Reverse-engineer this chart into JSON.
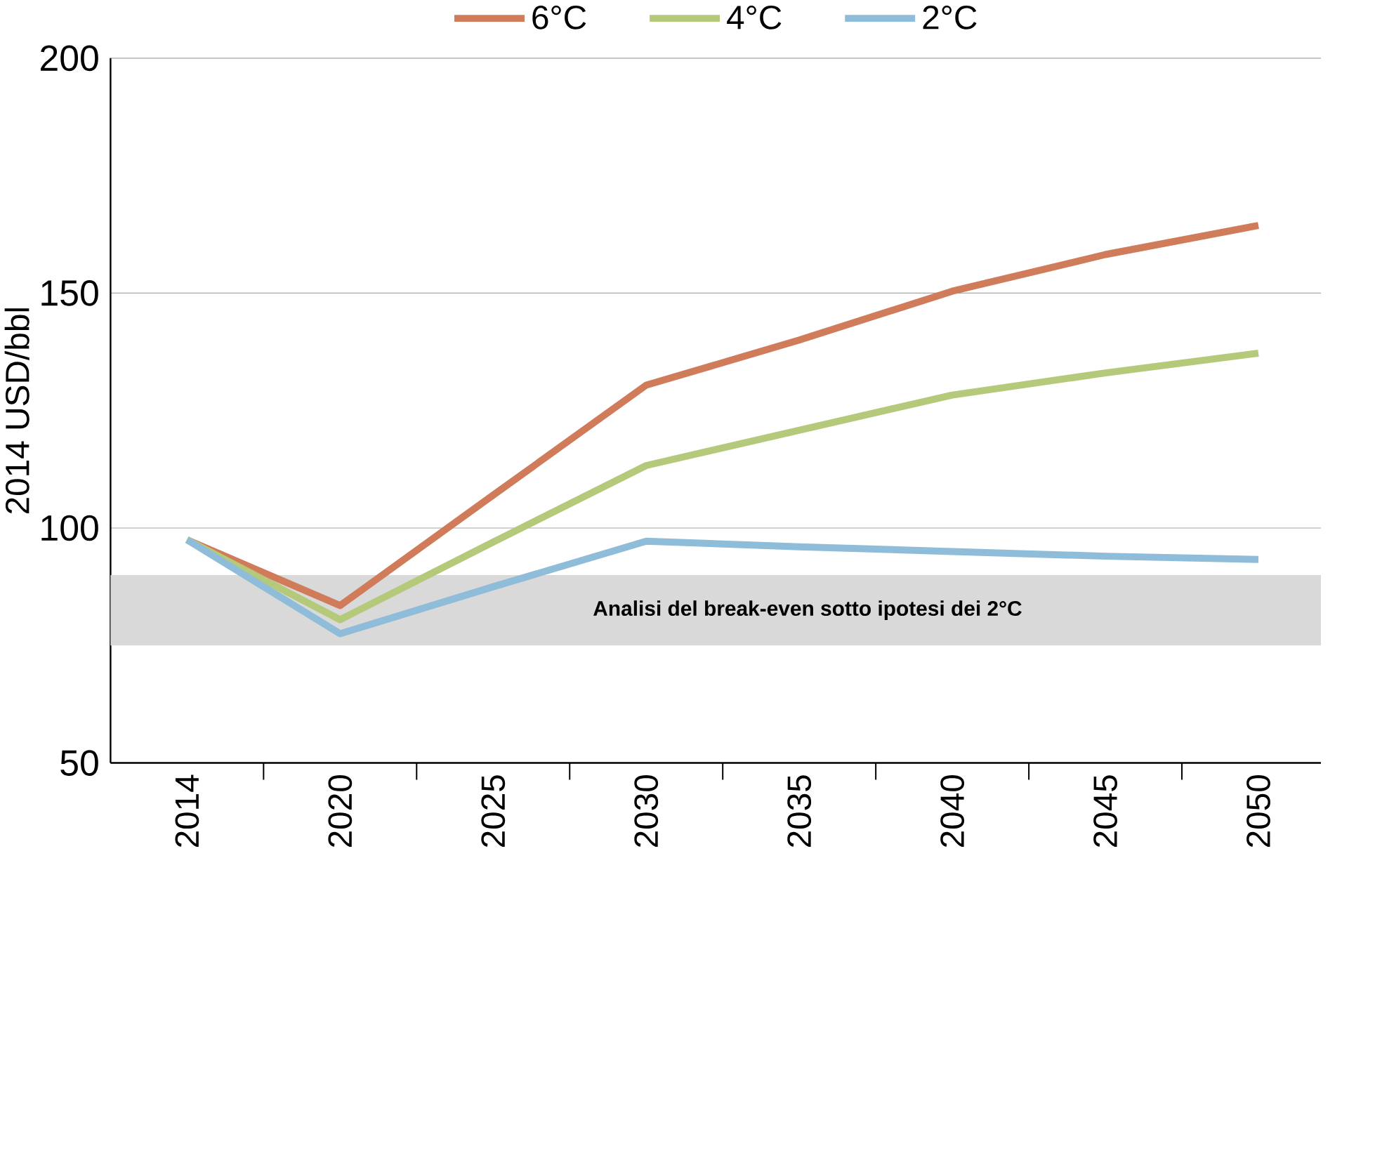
{
  "chart_data": {
    "type": "line",
    "ylabel": "2014 USD/bbl",
    "categories": [
      "2014",
      "2020",
      "2025",
      "2030",
      "2035",
      "2040",
      "2045",
      "2050"
    ],
    "series": [
      {
        "name": "6°C",
        "color": "#d07c5a",
        "values": [
          97.5,
          83.5,
          107,
          130.4,
          140,
          150.4,
          158.2,
          164.4
        ]
      },
      {
        "name": "4°C",
        "color": "#b5c97a",
        "values": [
          97.5,
          80.5,
          97,
          113.3,
          120.8,
          128.3,
          133,
          137.2
        ]
      },
      {
        "name": "2°C",
        "color": "#8fbcd8",
        "values": [
          97.5,
          77.5,
          87.5,
          97.2,
          96,
          95,
          94,
          93.3
        ]
      }
    ],
    "ylim": [
      50,
      200
    ],
    "yticks": [
      50,
      100,
      150,
      200
    ],
    "grid": "y",
    "legend": "top",
    "marker": "none",
    "line_style": "solid",
    "bands": [
      {
        "axis": "y",
        "from": 75,
        "to": 90,
        "label": "Analisi del break-even sotto ipotesi dei 2°C",
        "color": "#d9d9d9"
      }
    ]
  }
}
